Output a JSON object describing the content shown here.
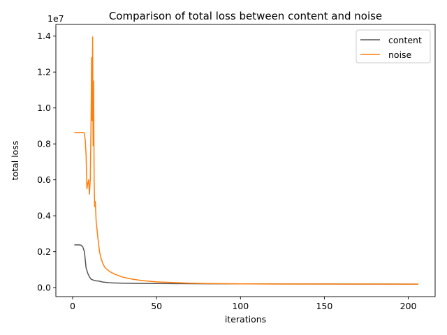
{
  "chart_data": {
    "type": "line",
    "title": "Comparison of total loss between content and noise",
    "xlabel": "iterations",
    "ylabel": "total loss",
    "y_scale_text": "1e7",
    "xlim": [
      -10,
      216
    ],
    "ylim": [
      -0.05,
      1.465
    ],
    "x_ticks": [
      0,
      50,
      100,
      150,
      200
    ],
    "x_tick_labels": [
      "0",
      "50",
      "100",
      "150",
      "200"
    ],
    "y_ticks": [
      0.0,
      0.2,
      0.4,
      0.6,
      0.8,
      1.0,
      1.2,
      1.4
    ],
    "y_tick_labels": [
      "0.0",
      "0.2",
      "0.4",
      "0.6",
      "0.8",
      "1.0",
      "1.2",
      "1.4"
    ],
    "grid": false,
    "legend_position": "upper-right",
    "series": [
      {
        "name": "content",
        "color": "#555555",
        "x": [
          1,
          2,
          3,
          4,
          5,
          6,
          7,
          8,
          9,
          10,
          11,
          12,
          13,
          14,
          15,
          16,
          17,
          18,
          20,
          22,
          25,
          30,
          35,
          40,
          50,
          60,
          70,
          80,
          100,
          120,
          150,
          180,
          206
        ],
        "y": [
          0.238,
          0.238,
          0.238,
          0.238,
          0.236,
          0.228,
          0.2,
          0.11,
          0.08,
          0.06,
          0.047,
          0.043,
          0.04,
          0.038,
          0.037,
          0.036,
          0.033,
          0.031,
          0.029,
          0.027,
          0.026,
          0.025,
          0.024,
          0.0235,
          0.0228,
          0.0222,
          0.0218,
          0.0215,
          0.021,
          0.0206,
          0.0202,
          0.0198,
          0.0195
        ]
      },
      {
        "name": "noise",
        "color": "#ff7f0e",
        "x": [
          1,
          2,
          3,
          4,
          5,
          6,
          7,
          7.5,
          8,
          8.5,
          9,
          9.5,
          10,
          10.5,
          11,
          11.3,
          11.6,
          11.9,
          12.2,
          12.5,
          12.8,
          13.1,
          13.5,
          14,
          15,
          16,
          17,
          18,
          19,
          20,
          22,
          25,
          28,
          30,
          35,
          40,
          45,
          50,
          55,
          60,
          70,
          80,
          90,
          100,
          120,
          150,
          180,
          206
        ],
        "y": [
          0.864,
          0.864,
          0.864,
          0.864,
          0.864,
          0.864,
          0.86,
          0.82,
          0.74,
          0.55,
          0.58,
          0.6,
          0.52,
          0.6,
          0.95,
          1.28,
          0.93,
          1.395,
          0.79,
          1.15,
          0.6,
          0.45,
          0.48,
          0.37,
          0.28,
          0.2,
          0.16,
          0.135,
          0.115,
          0.105,
          0.09,
          0.075,
          0.065,
          0.058,
          0.048,
          0.041,
          0.036,
          0.032,
          0.03,
          0.028,
          0.025,
          0.023,
          0.022,
          0.021,
          0.0205,
          0.02,
          0.0198,
          0.0195
        ]
      }
    ]
  }
}
